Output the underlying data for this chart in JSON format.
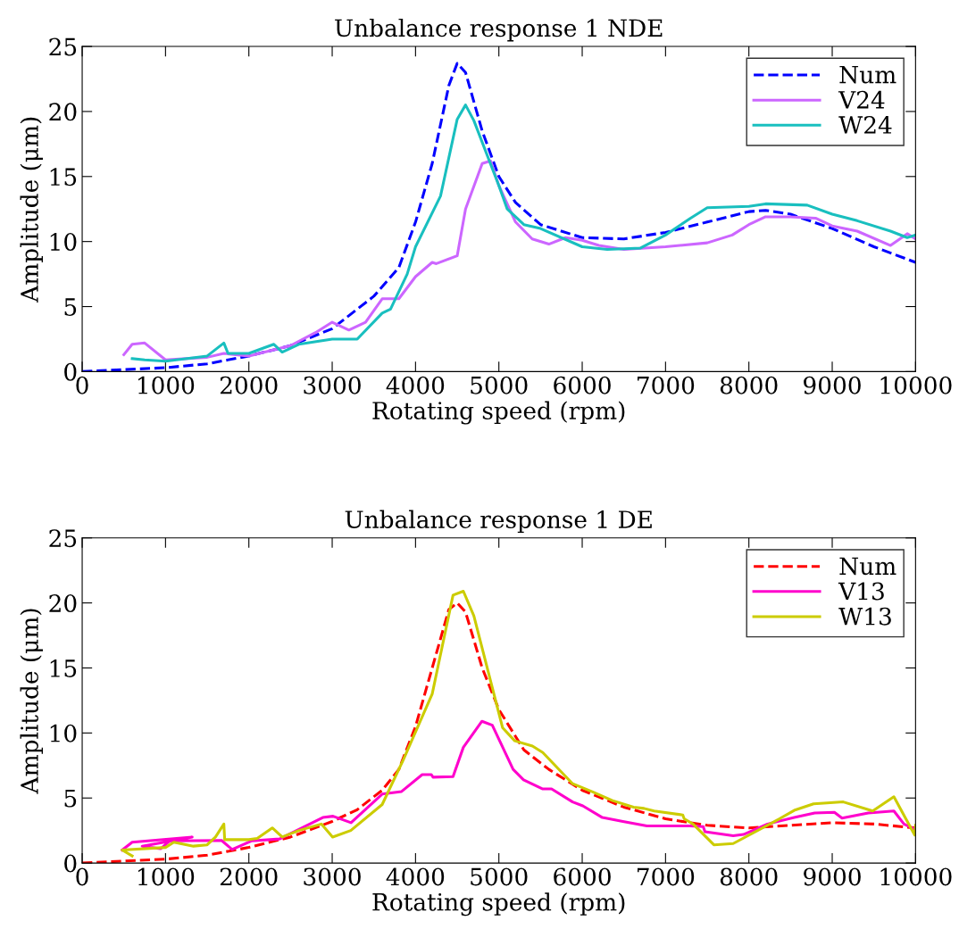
{
  "chart_data": [
    {
      "type": "line",
      "title": "Unbalance response 1 NDE",
      "xlabel": "Rotating speed (rpm)",
      "ylabel": "Amplitude (μm)",
      "xlim": [
        0,
        10000
      ],
      "ylim": [
        0,
        25
      ],
      "xticks": [
        0,
        1000,
        2000,
        3000,
        4000,
        5000,
        6000,
        7000,
        8000,
        9000,
        10000
      ],
      "yticks": [
        0,
        5,
        10,
        15,
        20,
        25
      ],
      "grid": false,
      "legend": "top right",
      "series": [
        {
          "name": "Num",
          "color": "#0000ff",
          "line_style": "dashed",
          "x": [
            0,
            1000,
            1500,
            2000,
            2500,
            3000,
            3500,
            3800,
            4000,
            4200,
            4400,
            4500,
            4600,
            4800,
            5000,
            5200,
            5500,
            6000,
            6500,
            7000,
            7500,
            8000,
            8200,
            8500,
            9000,
            9500,
            10000
          ],
          "values": [
            0,
            0.3,
            0.6,
            1.2,
            2.0,
            3.3,
            5.8,
            8,
            11.5,
            16,
            22,
            23.7,
            23,
            18.5,
            15,
            13,
            11.3,
            10.3,
            10.2,
            10.7,
            11.5,
            12.3,
            12.4,
            12.1,
            11,
            9.6,
            8.4
          ]
        },
        {
          "name": "V24",
          "color": "#cc66ff",
          "line_style": "solid",
          "x": [
            500,
            600,
            750,
            1000,
            1500,
            1700,
            2000,
            2500,
            2800,
            3000,
            3200,
            3400,
            3600,
            3800,
            4000,
            4200,
            4250,
            4500,
            4600,
            4800,
            4900,
            5000,
            5200,
            5400,
            5600,
            5800,
            6000,
            6200,
            6500,
            7000,
            7500,
            7800,
            8000,
            8200,
            8500,
            8800,
            9000,
            9300,
            9700,
            9900,
            10000
          ],
          "values": [
            1.3,
            2.1,
            2.2,
            0.9,
            1.1,
            1.4,
            1.2,
            2.0,
            3.0,
            3.8,
            3.2,
            3.8,
            5.6,
            5.6,
            7.3,
            8.4,
            8.3,
            8.9,
            12.5,
            16.0,
            16.2,
            14.3,
            11.5,
            10.2,
            9.8,
            10.3,
            10.1,
            9.7,
            9.4,
            9.6,
            9.9,
            10.5,
            11.3,
            11.9,
            11.9,
            11.8,
            11.2,
            10.8,
            9.7,
            10.6,
            10.2
          ]
        },
        {
          "name": "W24",
          "color": "#19bfbf",
          "line_style": "solid",
          "x": [
            600,
            750,
            1000,
            1500,
            1700,
            1750,
            2000,
            2300,
            2400,
            2600,
            3000,
            3300,
            3600,
            3700,
            3900,
            4000,
            4300,
            4500,
            4600,
            4700,
            5000,
            5100,
            5300,
            5500,
            6000,
            6300,
            6700,
            7000,
            7300,
            7500,
            8000,
            8200,
            8700,
            9000,
            9300,
            9700,
            9900,
            10000
          ],
          "values": [
            1.0,
            0.9,
            0.8,
            1.2,
            2.2,
            1.4,
            1.4,
            2.1,
            1.5,
            2.1,
            2.5,
            2.5,
            4.5,
            4.8,
            7.5,
            9.6,
            13.5,
            19.4,
            20.5,
            19.3,
            14.3,
            12.5,
            11.3,
            11.0,
            9.6,
            9.4,
            9.5,
            10.5,
            11.8,
            12.6,
            12.7,
            12.9,
            12.8,
            12.1,
            11.6,
            10.8,
            10.3,
            10.5
          ]
        }
      ]
    },
    {
      "type": "line",
      "title": "Unbalance response 1 DE",
      "xlabel": "Rotating speed (rpm)",
      "ylabel": "Amplitude (μm)",
      "xlim": [
        0,
        10000
      ],
      "ylim": [
        0,
        25
      ],
      "xticks": [
        0,
        1000,
        2000,
        3000,
        4000,
        5000,
        6000,
        7000,
        8000,
        9000,
        10000
      ],
      "yticks": [
        0,
        5,
        10,
        15,
        20,
        25
      ],
      "grid": false,
      "legend": "top right",
      "series": [
        {
          "name": "Num",
          "color": "#ff0000",
          "line_style": "dashed",
          "x": [
            0,
            1000,
            1500,
            2000,
            2500,
            3000,
            3300,
            3600,
            3800,
            4000,
            4200,
            4400,
            4500,
            4600,
            4800,
            5000,
            5300,
            5600,
            6000,
            6500,
            7000,
            7500,
            8000,
            8500,
            9000,
            9500,
            10000
          ],
          "values": [
            0,
            0.3,
            0.6,
            1.2,
            2.0,
            3.2,
            4.1,
            5.6,
            7.2,
            10.5,
            15,
            19.5,
            20.0,
            19.3,
            15,
            11.8,
            8.7,
            7.2,
            5.6,
            4.3,
            3.4,
            2.9,
            2.7,
            2.9,
            3.1,
            3.0,
            2.7
          ]
        },
        {
          "name": "V13",
          "color": "#ff00cc",
          "line_style": "solid",
          "x": [
            480,
            600,
            1320,
            720,
            940,
            1050,
            1673,
            1799,
            2030,
            2368,
            2887,
            3010,
            3226,
            3600,
            3833,
            4080,
            4190,
            4210,
            4450,
            4574,
            4797,
            4921,
            5171,
            5296,
            5527,
            5632,
            5885,
            6007,
            6242,
            6488,
            6777,
            7291,
            7452,
            7473,
            7812,
            7936,
            8223,
            8544,
            8790,
            9026,
            9118,
            9433,
            9740,
            9861,
            9990
          ],
          "values": [
            1.0,
            1.6,
            2.0,
            1.3,
            1.1,
            1.7,
            1.74,
            1.05,
            1.7,
            1.85,
            3.5,
            3.6,
            3.1,
            5.3,
            5.5,
            6.8,
            6.8,
            6.6,
            6.65,
            8.9,
            10.9,
            10.6,
            7.2,
            6.4,
            5.7,
            5.7,
            4.7,
            4.4,
            3.5,
            3.2,
            2.85,
            2.85,
            2.8,
            2.4,
            2.1,
            2.2,
            3.0,
            3.5,
            3.85,
            3.9,
            3.45,
            3.85,
            4.0,
            3.0,
            2.6
          ]
        },
        {
          "name": "W13",
          "color": "#cccc00",
          "line_style": "solid",
          "x": [
            600,
            480,
            1000,
            1100,
            1335,
            1500,
            1600,
            1700,
            1710,
            2000,
            2100,
            2281,
            2400,
            2600,
            2870,
            3005,
            3223,
            3600,
            3851,
            4200,
            4450,
            4574,
            4700,
            5045,
            5190,
            5403,
            5527,
            5885,
            6132,
            6364,
            6617,
            6742,
            6863,
            7206,
            7224,
            7330,
            7580,
            7812,
            8366,
            8544,
            8776,
            8897,
            9133,
            9486,
            9740,
            9990,
            10000
          ],
          "values": [
            0.55,
            1.0,
            1.2,
            1.6,
            1.3,
            1.4,
            2.0,
            3.0,
            1.8,
            1.8,
            1.9,
            2.7,
            2.0,
            2.5,
            3.0,
            2.0,
            2.5,
            4.5,
            7.9,
            13,
            20.6,
            20.9,
            19.0,
            10.4,
            9.4,
            9.0,
            8.5,
            6.1,
            5.45,
            4.8,
            4.3,
            4.2,
            4.0,
            3.7,
            3.4,
            3.0,
            1.4,
            1.5,
            3.4,
            4.05,
            4.55,
            4.6,
            4.7,
            4.0,
            5.1,
            2.15,
            2.9
          ]
        }
      ]
    }
  ]
}
